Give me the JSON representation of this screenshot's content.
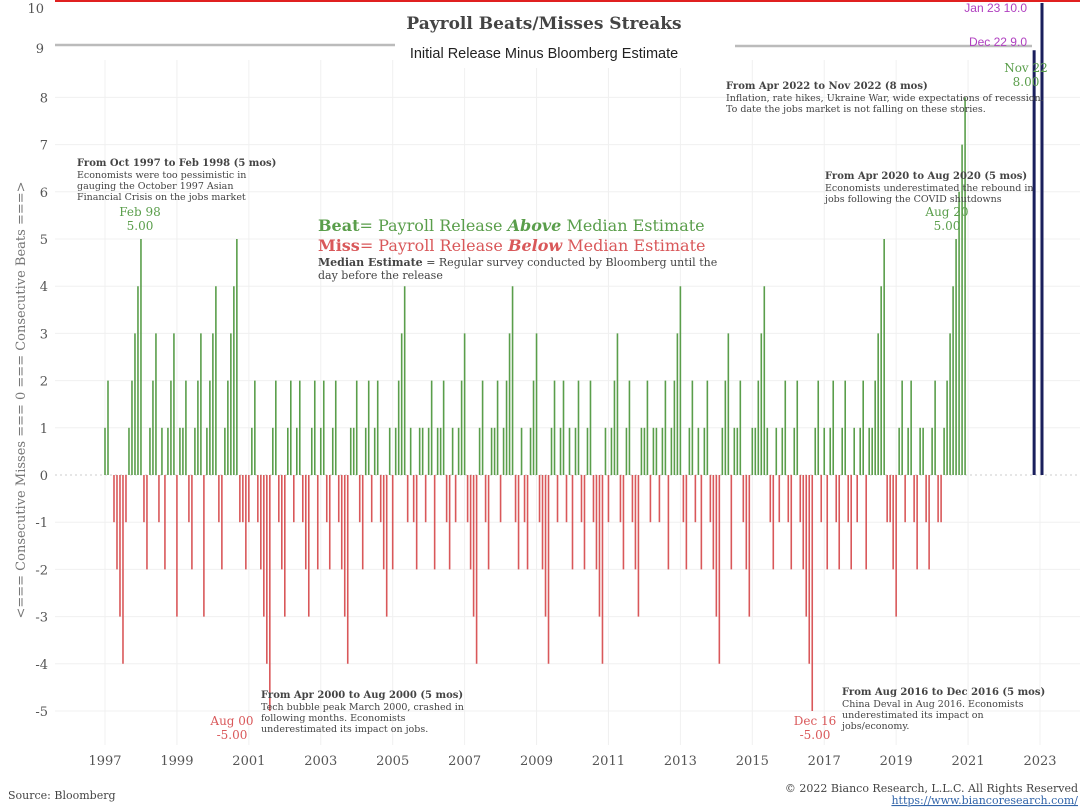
{
  "chart_data": {
    "type": "bar",
    "title": "Payroll Beats/Misses Streaks",
    "subtitle": "Initial Release Minus Bloomberg Estimate",
    "ylabel": "<=== Consecutive Misses === 0 === Consecutive Beats ===>",
    "ylim": [
      -6,
      10
    ],
    "y_ticks": [
      "-5",
      "-4",
      "-3",
      "-2",
      "-1",
      "0",
      "1",
      "2",
      "3",
      "4",
      "5",
      "6",
      "7",
      "8",
      "9",
      "10"
    ],
    "x_ticks": [
      "1997",
      "1999",
      "2001",
      "2003",
      "2005",
      "2007",
      "2009",
      "2011",
      "2013",
      "2015",
      "2017",
      "2019",
      "2021",
      "2023"
    ],
    "x_range": [
      1997,
      2023.4
    ],
    "series": [
      {
        "name": "Beat",
        "color": "#5a9e4b"
      },
      {
        "name": "Miss",
        "color": "#d9585a"
      }
    ],
    "monthly_start": [
      1997,
      1
    ],
    "monthly_values": [
      1,
      2,
      0,
      -1,
      -2,
      -3,
      -4,
      -1,
      1,
      2,
      3,
      4,
      5,
      -1,
      -2,
      1,
      2,
      3,
      -1,
      1,
      -2,
      1,
      2,
      3,
      -3,
      1,
      1,
      2,
      -1,
      -2,
      1,
      2,
      3,
      -3,
      1,
      2,
      3,
      4,
      -1,
      -2,
      1,
      2,
      3,
      4,
      5,
      -1,
      -1,
      -2,
      -1,
      1,
      2,
      -1,
      -2,
      -3,
      -4,
      -5,
      1,
      2,
      -1,
      -2,
      -3,
      1,
      2,
      -1,
      1,
      2,
      -1,
      -2,
      -3,
      1,
      2,
      -2,
      1,
      2,
      -1,
      -2,
      1,
      2,
      -1,
      -2,
      -3,
      -4,
      1,
      1,
      2,
      -1,
      -2,
      1,
      2,
      -1,
      1,
      2,
      -1,
      -2,
      -3,
      1,
      -2,
      1,
      2,
      3,
      4,
      -1,
      1,
      -1,
      -2,
      1,
      1,
      -1,
      1,
      2,
      -2,
      1,
      1,
      2,
      -1,
      -2,
      1,
      -1,
      1,
      2,
      3,
      -1,
      -2,
      -3,
      -4,
      1,
      2,
      -1,
      -2,
      1,
      1,
      2,
      -1,
      1,
      2,
      3,
      4,
      -1,
      -2,
      1,
      -1,
      -2,
      1,
      2,
      3,
      -1,
      -2,
      -3,
      -4,
      1,
      2,
      -1,
      1,
      2,
      -1,
      1,
      -2,
      1,
      2,
      -1,
      -2,
      1,
      2,
      -1,
      -2,
      -3,
      -4,
      1,
      -1,
      1,
      2,
      3,
      -1,
      -2,
      1,
      2,
      -1,
      -2,
      -3,
      1,
      1,
      2,
      -1,
      1,
      1,
      -1,
      1,
      2,
      -2,
      1,
      2,
      3,
      4,
      -1,
      -2,
      1,
      2,
      -1,
      1,
      -2,
      1,
      2,
      -1,
      -2,
      -3,
      -4,
      1,
      2,
      3,
      -2,
      1,
      1,
      2,
      -1,
      -2,
      -3,
      1,
      1,
      2,
      3,
      4,
      1,
      -1,
      -2,
      1,
      -1,
      1,
      2,
      -1,
      -2,
      1,
      2,
      -1,
      -2,
      -3,
      -4,
      -5,
      1,
      2,
      -1,
      1,
      -2,
      1,
      2,
      -1,
      -2,
      1,
      2,
      -1,
      -2,
      1,
      -1,
      1,
      2,
      -2,
      1,
      1,
      2,
      3,
      4,
      5,
      -1,
      -1,
      -2,
      -3,
      1,
      2,
      -1,
      1,
      2,
      -1,
      -2,
      1,
      1,
      -1,
      -2,
      1,
      2,
      -1,
      -1,
      1,
      2,
      3,
      4,
      5,
      6,
      7,
      8
    ],
    "extra_points": [
      {
        "label": "Dec 22 9.0",
        "date": "Dec 22",
        "x": 2022.92,
        "value": 9.0
      },
      {
        "label": "Jan 23 10.0",
        "date": "Jan 23",
        "x": 2023.0,
        "value": 10.0
      }
    ],
    "data_labels": [
      {
        "date": "Feb 98",
        "value": "5.00"
      },
      {
        "date": "Aug 00",
        "value": "-5.00"
      },
      {
        "date": "Dec 16",
        "value": "-5.00"
      },
      {
        "date": "Aug 20",
        "value": "5.00"
      },
      {
        "date": "Nov 22",
        "value": "8.00"
      }
    ],
    "legend": {
      "beat_prefix": "Beat",
      "beat_rest": "= Payroll Release",
      "beat_em": "Above",
      "beat_suffix": "Median Estimate",
      "miss_prefix": "Miss",
      "miss_rest": "= Payroll Release",
      "miss_em": "Below",
      "miss_suffix": "Median Estimate",
      "median_bold": "Median Estimate",
      "median_line1": "= Regular survey conducted by Bloomberg until the",
      "median_line2": "day before the release"
    },
    "annotations": [
      {
        "title": "From Oct 1997 to Feb 1998 (5 mos)",
        "lines": [
          "Economists were too pessimistic in",
          "gauging the October 1997 Asian",
          "Financial Crisis on the jobs market"
        ]
      },
      {
        "title": "From Apr 2000 to Aug 2000 (5 mos)",
        "lines": [
          "Tech bubble peak March 2000, crashed in",
          "following months. Economists",
          "underestimated its impact on jobs."
        ]
      },
      {
        "title": "From Aug 2016 to Dec 2016 (5 mos)",
        "lines": [
          "China Deval in Aug 2016. Economists",
          "underestimated its impact on",
          "jobs/economy."
        ]
      },
      {
        "title": "From Apr 2020 to Aug 2020 (5 mos)",
        "lines": [
          "Economists underestimated the rebound in",
          "jobs following the COVID shutdowns"
        ]
      },
      {
        "title": "From Apr 2022 to Nov 2022 (8 mos)",
        "lines": [
          "Inflation, rate hikes, Ukraine War, wide expectations of recession.",
          "To date the jobs market is not falling on these stories."
        ]
      }
    ],
    "source": "Source: Bloomberg",
    "copyright": "© 2022 Bianco Research, L.L.C. All Rights Reserved",
    "url": "https://www.biancoresearch.com/"
  },
  "colors": {
    "beat": "#5a9e4b",
    "miss": "#d9585a",
    "extra": "#1a1f5c",
    "extra_label": "#b040c0",
    "top_line": "#e02020",
    "title": "#444444",
    "axis_text": "#555555"
  }
}
